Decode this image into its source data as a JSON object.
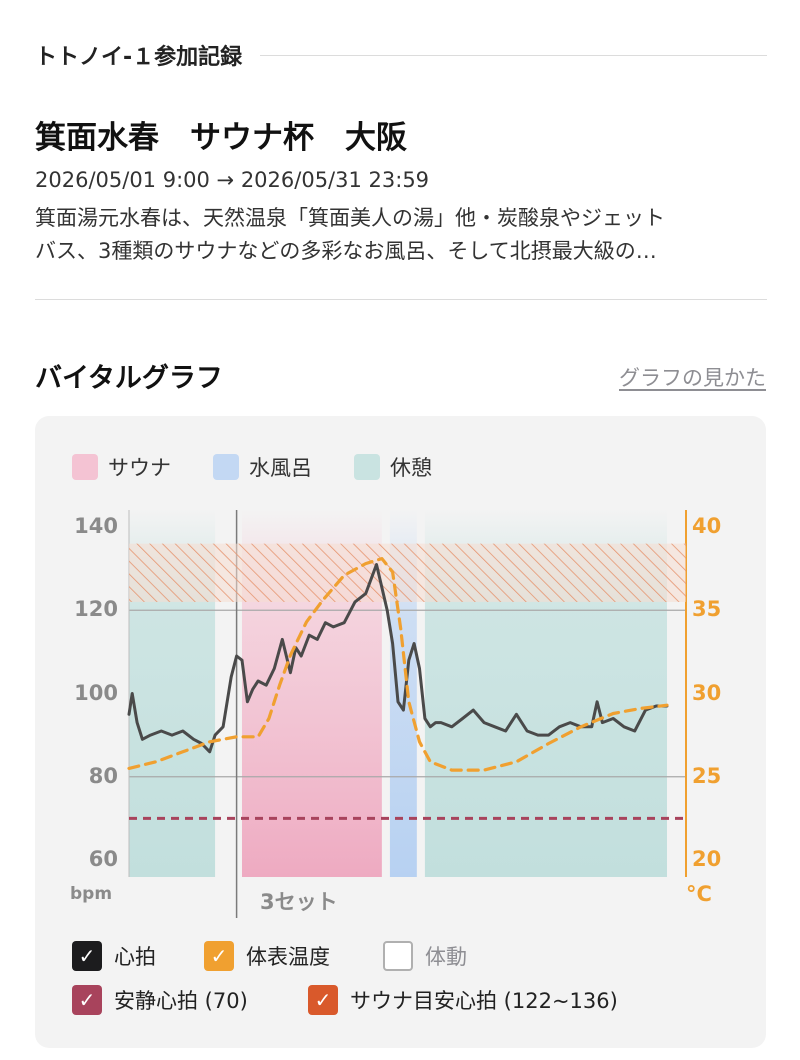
{
  "header": {
    "section_label": "トトノイ-１参加記録"
  },
  "event": {
    "title": "箕面水春　サウナ杯　大阪",
    "dates": "2026/05/01 9:00 → 2026/05/31 23:59",
    "desc_line1": "箕面湯元水春は、天然温泉「箕面美人の湯」他・炭酸泉やジェット",
    "desc_line2": "バス、3種類のサウナなどの多彩なお風呂、そして北摂最大級の…"
  },
  "vital": {
    "title": "バイタルグラフ",
    "howto_link": "グラフの見かた"
  },
  "legend": [
    {
      "label": "サウナ",
      "color": "#f4c3d3"
    },
    {
      "label": "水風呂",
      "color": "#c3d8f3"
    },
    {
      "label": "休憩",
      "color": "#c9e3e1"
    }
  ],
  "toggles": {
    "heart_rate": {
      "label": "心拍",
      "checked": true,
      "color": "#1c1c1e"
    },
    "skin_temp": {
      "label": "体表温度",
      "checked": true,
      "color": "#f0a030"
    },
    "movement": {
      "label": "体動",
      "checked": false
    },
    "resting_hr": {
      "label": "安静心拍 (70)",
      "checked": true,
      "color": "#a8435c"
    },
    "sauna_target": {
      "label": "サウナ目安心拍 (122~136)",
      "checked": true,
      "color": "#d9592b"
    }
  },
  "chart_data": {
    "type": "line",
    "set_label": "3セット",
    "y_left": {
      "unit": "bpm",
      "ticks": [
        140,
        120,
        100,
        80,
        60
      ],
      "range": [
        60,
        140
      ]
    },
    "y_right": {
      "unit": "°C",
      "ticks": [
        40,
        35,
        30,
        25,
        20
      ],
      "range": [
        20,
        40
      ]
    },
    "time_range": [
      0,
      100
    ],
    "phases": [
      {
        "type": "休憩",
        "start": 0,
        "end": 16
      },
      {
        "type": "サウナ",
        "start": 21,
        "end": 47
      },
      {
        "type": "水風呂",
        "start": 48.5,
        "end": 53.5
      },
      {
        "type": "休憩",
        "start": 55,
        "end": 100
      }
    ],
    "set_marker_at": 20,
    "resting_hr": 70,
    "sauna_target_hr": [
      122,
      136
    ],
    "series": [
      {
        "name": "心拍",
        "color": "#4a4a4a",
        "t": [
          0,
          0.6,
          1.5,
          2.5,
          4,
          6,
          8,
          10,
          12,
          13.5,
          15,
          16,
          17.5,
          19,
          20,
          21,
          22,
          23,
          24,
          25.5,
          27,
          28.5,
          30,
          31,
          32,
          33.5,
          35,
          36.5,
          38,
          40,
          42,
          44,
          46,
          48,
          49,
          50,
          51,
          52,
          53,
          54,
          55,
          56,
          57,
          58,
          60,
          62,
          64,
          66,
          68,
          70,
          72,
          74,
          76,
          78,
          80,
          82,
          84,
          86,
          87,
          88,
          90,
          92,
          94,
          96,
          98,
          100
        ],
        "values": [
          95,
          100,
          93,
          89,
          90,
          91,
          90,
          91,
          89,
          88,
          86,
          90,
          92,
          104,
          109,
          108,
          98,
          101,
          103,
          102,
          106,
          113,
          105,
          111,
          109,
          114,
          113,
          117,
          116,
          117,
          122,
          124,
          131,
          120,
          112,
          98,
          96,
          108,
          112,
          106,
          94,
          92,
          93,
          93,
          92,
          94,
          96,
          93,
          92,
          91,
          95,
          91,
          90,
          90,
          92,
          93,
          92,
          92,
          98,
          93,
          94,
          92,
          91,
          96,
          97,
          97
        ]
      },
      {
        "name": "体表温度",
        "color": "#f0a030",
        "t": [
          0,
          5,
          10,
          15,
          20,
          24,
          26,
          28,
          30,
          33,
          36,
          40,
          44,
          47,
          49,
          50.5,
          52,
          54,
          56,
          60,
          66,
          72,
          78,
          84,
          90,
          95,
          100
        ],
        "values": [
          25.5,
          25.9,
          26.5,
          27.1,
          27.4,
          27.4,
          28.5,
          30.5,
          32.3,
          34.3,
          35.6,
          37.1,
          37.8,
          38.1,
          37.3,
          33.9,
          29.5,
          27.1,
          25.9,
          25.4,
          25.4,
          25.9,
          27,
          28,
          28.8,
          29.1,
          29.3
        ]
      }
    ]
  }
}
